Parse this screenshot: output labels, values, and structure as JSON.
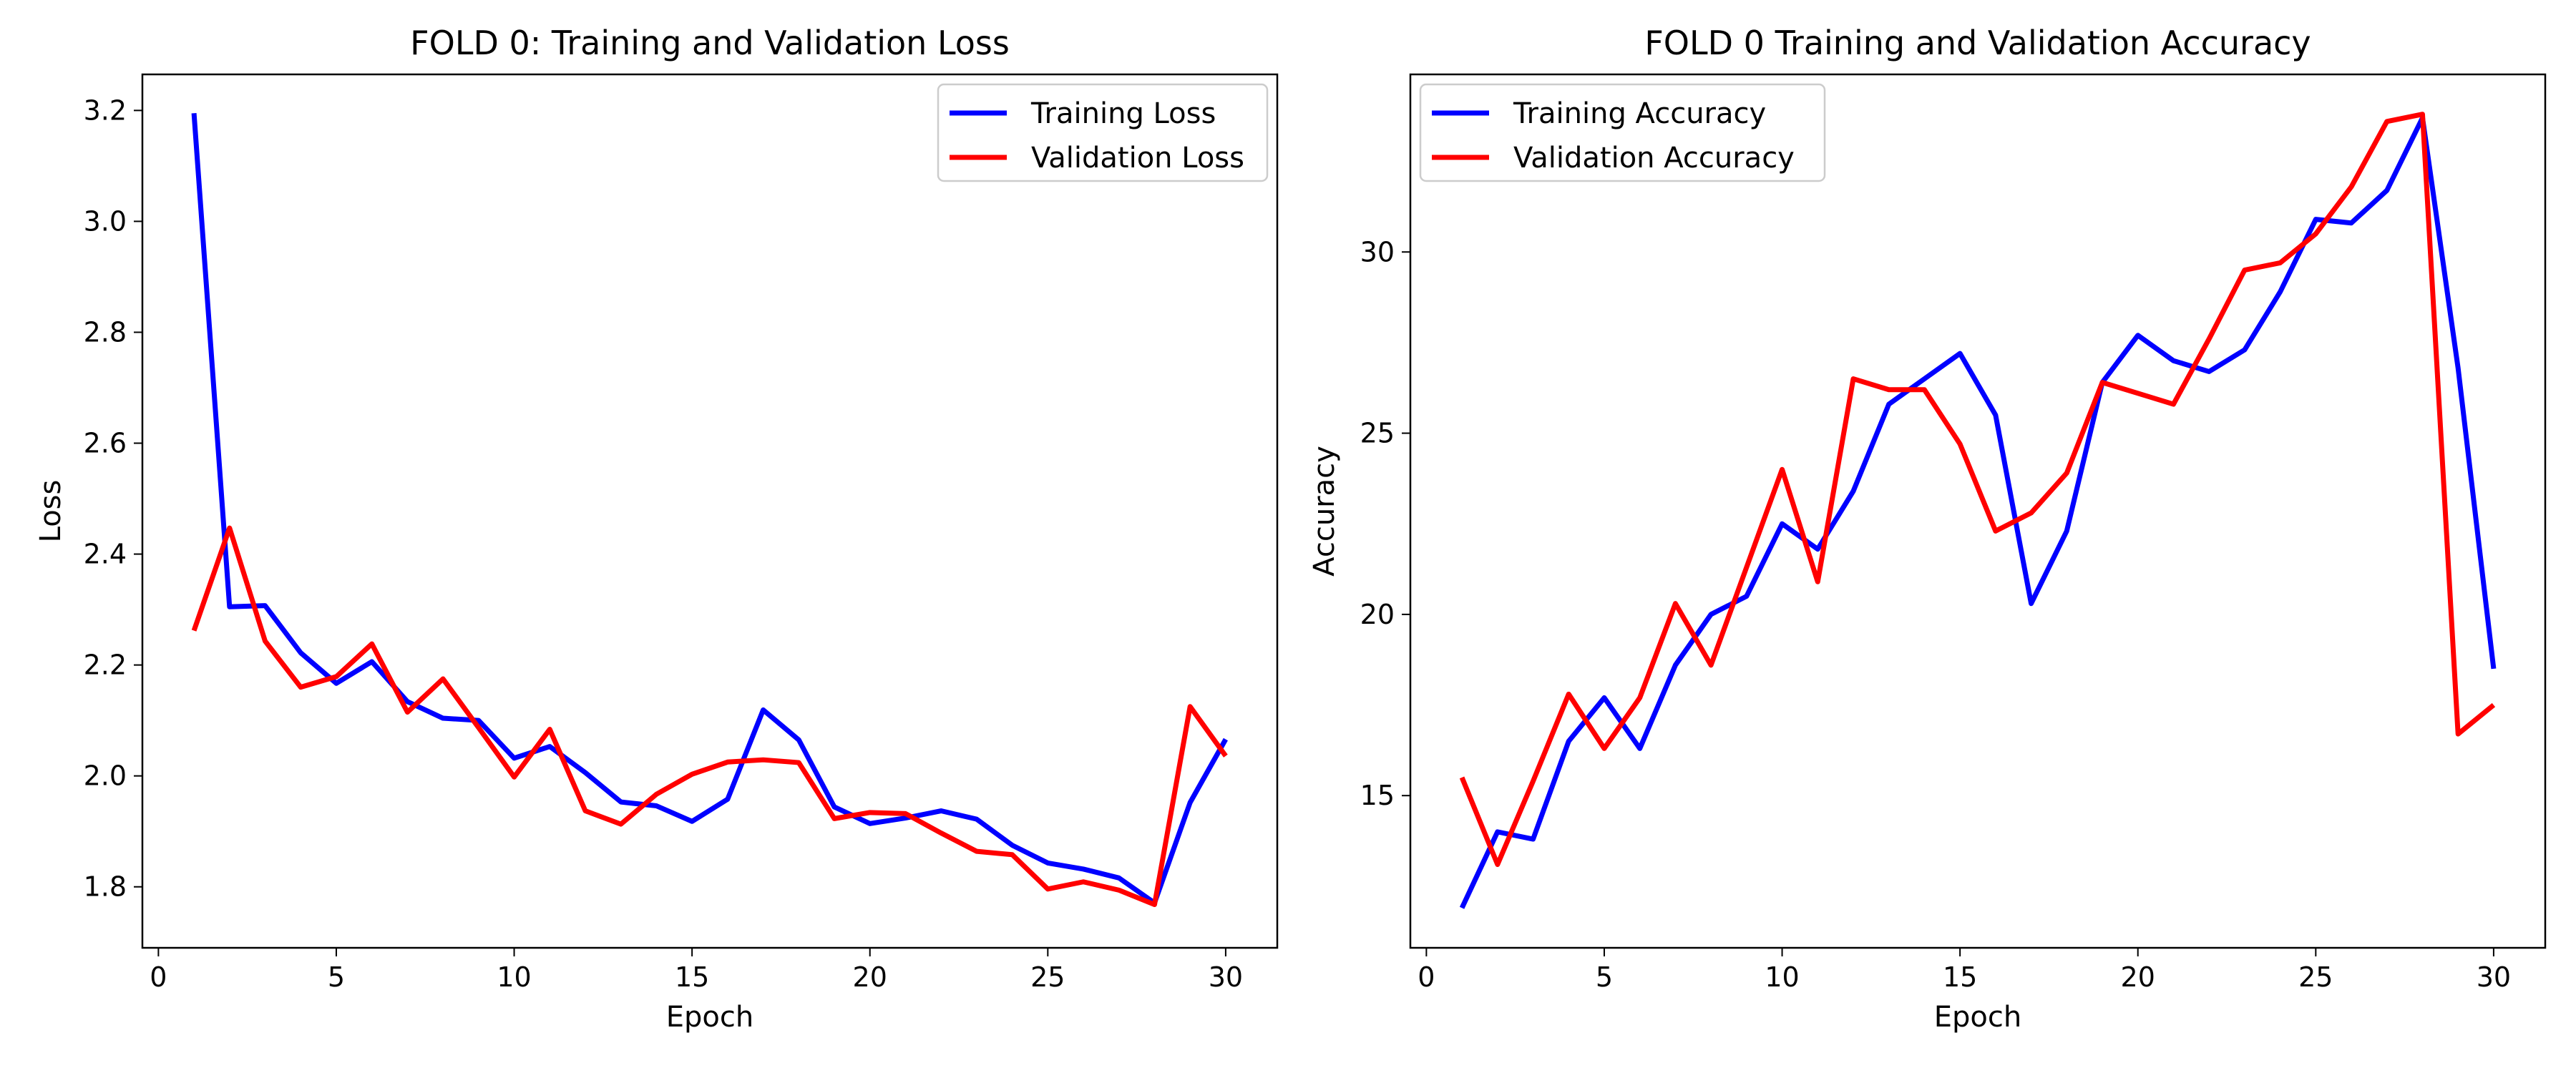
{
  "chart_data": [
    {
      "type": "line",
      "title": "FOLD 0: Training and Validation Loss",
      "xlabel": "Epoch",
      "ylabel": "Loss",
      "xlim": [
        -0.45,
        31.45
      ],
      "ylim": [
        1.69,
        3.265
      ],
      "xticks": [
        0,
        5,
        10,
        15,
        20,
        25,
        30
      ],
      "yticks": [
        1.8,
        2.0,
        2.2,
        2.4,
        2.6,
        2.8,
        3.0,
        3.2
      ],
      "grid": false,
      "legend_position": "upper right",
      "x": [
        1,
        2,
        3,
        4,
        5,
        6,
        7,
        8,
        9,
        10,
        11,
        12,
        13,
        14,
        15,
        16,
        17,
        18,
        19,
        20,
        21,
        22,
        23,
        24,
        25,
        26,
        27,
        28,
        29,
        30
      ],
      "series": [
        {
          "name": "Training Loss",
          "color": "#0000ff",
          "values": [
            3.195,
            2.305,
            2.307,
            2.222,
            2.167,
            2.206,
            2.134,
            2.104,
            2.1,
            2.032,
            2.053,
            2.006,
            1.953,
            1.946,
            1.918,
            1.958,
            2.119,
            2.065,
            1.944,
            1.914,
            1.924,
            1.937,
            1.922,
            1.875,
            1.843,
            1.832,
            1.816,
            1.771,
            1.952,
            2.066
          ]
        },
        {
          "name": "Validation Loss",
          "color": "#ff0000",
          "values": [
            2.262,
            2.447,
            2.243,
            2.16,
            2.179,
            2.238,
            2.115,
            2.175,
            2.087,
            1.998,
            2.084,
            1.937,
            1.913,
            1.967,
            2.003,
            2.025,
            2.029,
            2.024,
            1.923,
            1.934,
            1.932,
            1.897,
            1.864,
            1.858,
            1.796,
            1.809,
            1.794,
            1.768,
            2.125,
            2.036
          ]
        }
      ]
    },
    {
      "type": "line",
      "title": "FOLD 0 Training and Validation Accuracy",
      "xlabel": "Epoch",
      "ylabel": "Accuracy",
      "xlim": [
        -0.45,
        31.45
      ],
      "ylim": [
        10.8,
        34.9
      ],
      "xticks": [
        0,
        5,
        10,
        15,
        20,
        25,
        30
      ],
      "yticks": [
        15,
        20,
        25,
        30
      ],
      "grid": false,
      "legend_position": "upper left",
      "x": [
        1,
        2,
        3,
        4,
        5,
        6,
        7,
        8,
        9,
        10,
        11,
        12,
        13,
        14,
        15,
        16,
        17,
        18,
        19,
        20,
        21,
        22,
        23,
        24,
        25,
        26,
        27,
        28,
        29,
        30
      ],
      "series": [
        {
          "name": "Training Accuracy",
          "color": "#0000ff",
          "values": [
            11.9,
            14.0,
            13.8,
            16.5,
            17.7,
            16.3,
            18.6,
            20.0,
            20.5,
            22.5,
            21.8,
            23.4,
            25.8,
            26.5,
            27.2,
            25.5,
            20.3,
            22.3,
            26.4,
            27.7,
            27.0,
            26.7,
            27.3,
            28.9,
            30.9,
            30.8,
            31.7,
            33.7,
            26.8,
            18.5
          ]
        },
        {
          "name": "Validation Accuracy",
          "color": "#ff0000",
          "values": [
            15.5,
            13.1,
            15.4,
            17.8,
            16.3,
            17.7,
            20.3,
            18.6,
            21.3,
            24.0,
            20.9,
            26.5,
            26.2,
            26.2,
            24.7,
            22.3,
            22.8,
            23.9,
            26.4,
            26.1,
            25.8,
            27.6,
            29.5,
            29.7,
            30.5,
            31.8,
            33.6,
            33.8,
            16.7,
            17.5
          ]
        }
      ]
    }
  ]
}
